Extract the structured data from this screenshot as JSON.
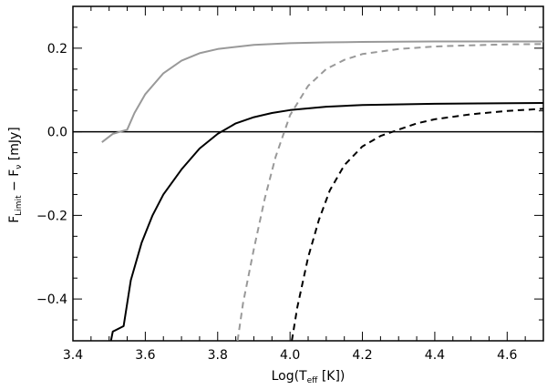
{
  "chart_data": {
    "type": "line",
    "xlabel": {
      "prefix": "Log(T",
      "sub": "eff",
      "suffix": " [K])"
    },
    "ylabel": {
      "prefix": "F",
      "sub": "Limit",
      "middle": " − F",
      "sub2": "ν",
      "suffix": " [mJy]"
    },
    "xlim": [
      3.4,
      4.7
    ],
    "ylim": [
      -0.5,
      0.3
    ],
    "xticks": [
      3.4,
      3.6,
      3.8,
      4.0,
      4.2,
      4.4,
      4.6
    ],
    "xtick_labels": [
      "3.4",
      "3.6",
      "3.8",
      "4.0",
      "4.2",
      "4.4",
      "4.6"
    ],
    "yticks": [
      -0.4,
      -0.2,
      0.0,
      0.2
    ],
    "ytick_labels": [
      "−0.4",
      "−0.2",
      "0.0",
      "0.2"
    ],
    "reference_line_y": 0.0,
    "grid": false,
    "series": [
      {
        "color": "#999999",
        "dash": "solid",
        "x": [
          3.48,
          3.51,
          3.55,
          3.57,
          3.6,
          3.65,
          3.7,
          3.75,
          3.8,
          3.9,
          4.0,
          4.1,
          4.2,
          4.4,
          4.7
        ],
        "y": [
          -0.025,
          -0.005,
          0.005,
          0.045,
          0.09,
          0.14,
          0.17,
          0.188,
          0.198,
          0.208,
          0.212,
          0.214,
          0.215,
          0.216,
          0.216
        ]
      },
      {
        "color": "#999999",
        "dash": "dashed",
        "x": [
          3.855,
          3.87,
          3.9,
          3.93,
          3.96,
          4.0,
          4.05,
          4.1,
          4.15,
          4.2,
          4.3,
          4.4,
          4.5,
          4.6,
          4.7
        ],
        "y": [
          -0.5,
          -0.41,
          -0.28,
          -0.16,
          -0.06,
          0.04,
          0.11,
          0.15,
          0.172,
          0.186,
          0.198,
          0.204,
          0.207,
          0.209,
          0.21
        ]
      },
      {
        "color": "#000000",
        "dash": "solid",
        "x": [
          3.505,
          3.51,
          3.54,
          3.56,
          3.59,
          3.62,
          3.65,
          3.7,
          3.75,
          3.8,
          3.85,
          3.9,
          3.95,
          4.0,
          4.1,
          4.2,
          4.4,
          4.7
        ],
        "y": [
          -0.5,
          -0.478,
          -0.465,
          -0.355,
          -0.265,
          -0.2,
          -0.15,
          -0.09,
          -0.04,
          -0.005,
          0.02,
          0.035,
          0.045,
          0.052,
          0.06,
          0.064,
          0.067,
          0.069
        ]
      },
      {
        "color": "#000000",
        "dash": "dashed",
        "x": [
          4.005,
          4.02,
          4.05,
          4.08,
          4.11,
          4.15,
          4.2,
          4.25,
          4.3,
          4.35,
          4.4,
          4.5,
          4.6,
          4.7
        ],
        "y": [
          -0.5,
          -0.42,
          -0.3,
          -0.21,
          -0.14,
          -0.08,
          -0.035,
          -0.01,
          0.005,
          0.02,
          0.03,
          0.042,
          0.05,
          0.055
        ]
      }
    ]
  }
}
